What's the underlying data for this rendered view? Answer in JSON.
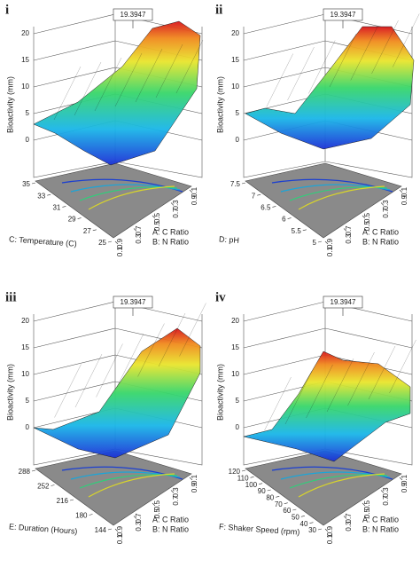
{
  "chart_data": [
    {
      "type": "surface",
      "panel": "i",
      "zlabel": "Bioactivity (mm)",
      "max_label": "19.3947",
      "zlim": [
        0,
        20
      ],
      "zticks": [
        0,
        5,
        10,
        15,
        20
      ],
      "a_label": "A: C Ratio",
      "alim": [
        0.1,
        0.9
      ],
      "aticks": [
        0.1,
        0.3,
        0.5,
        0.7,
        0.9
      ],
      "b_label": "B: N Ratio",
      "blim": [
        0.1,
        0.9
      ],
      "bticks": [
        0.9,
        0.7,
        0.5,
        0.3,
        0.1
      ],
      "c_label": "C: Temperature (C)",
      "clim": [
        25,
        35
      ],
      "cticks": [
        25,
        27,
        29,
        31,
        33,
        35
      ]
    },
    {
      "type": "surface",
      "panel": "ii",
      "zlabel": "Bioactivity (mm)",
      "max_label": "19.3947",
      "zlim": [
        0,
        20
      ],
      "zticks": [
        0,
        5,
        10,
        15,
        20
      ],
      "a_label": "A: C Ratio",
      "alim": [
        0.1,
        0.9
      ],
      "aticks": [
        0.1,
        0.3,
        0.5,
        0.7,
        0.9
      ],
      "b_label": "B: N Ratio",
      "blim": [
        0.1,
        0.9
      ],
      "bticks": [
        0.9,
        0.7,
        0.5,
        0.3,
        0.1
      ],
      "c_label": "D: pH",
      "clim": [
        5,
        7.5
      ],
      "cticks": [
        5,
        5.5,
        6,
        6.5,
        7,
        7.5
      ]
    },
    {
      "type": "surface",
      "panel": "iii",
      "zlabel": "Bioactivity (mm)",
      "max_label": "19.3947",
      "zlim": [
        0,
        20
      ],
      "zticks": [
        0,
        5,
        10,
        15,
        20
      ],
      "a_label": "A: C Ratio",
      "alim": [
        0.1,
        0.9
      ],
      "aticks": [
        0.1,
        0.3,
        0.5,
        0.7,
        0.9
      ],
      "b_label": "B: N Ratio",
      "blim": [
        0.1,
        0.9
      ],
      "bticks": [
        0.9,
        0.7,
        0.5,
        0.3,
        0.1
      ],
      "c_label": "E: Duration (Hours)",
      "clim": [
        144,
        288
      ],
      "cticks": [
        144,
        180,
        216,
        252,
        288
      ]
    },
    {
      "type": "surface",
      "panel": "iv",
      "zlabel": "Bioactivity (mm)",
      "max_label": "19.3947",
      "zlim": [
        0,
        20
      ],
      "zticks": [
        0,
        5,
        10,
        15,
        20
      ],
      "a_label": "A: C Ratio",
      "alim": [
        0.1,
        0.9
      ],
      "aticks": [
        0.1,
        0.3,
        0.5,
        0.7,
        0.9
      ],
      "b_label": "B: N Ratio",
      "blim": [
        0.1,
        0.9
      ],
      "bticks": [
        0.9,
        0.7,
        0.5,
        0.3,
        0.1
      ],
      "c_label": "F: Shaker Speed (rpm)",
      "clim": [
        30,
        120
      ],
      "cticks": [
        30,
        40,
        50,
        60,
        70,
        80,
        90,
        100,
        110,
        120
      ]
    }
  ]
}
